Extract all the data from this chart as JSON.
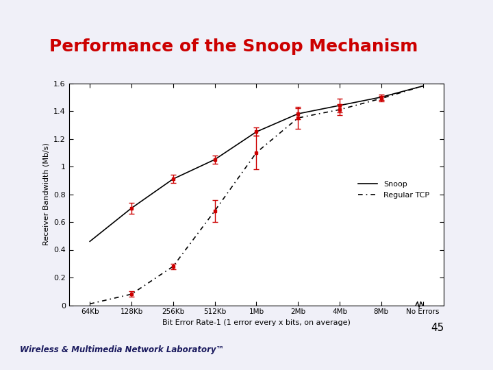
{
  "title": "Performance of the Snoop Mechanism",
  "title_color": "#cc0000",
  "title_fontsize": 18,
  "bg_color": "#f0f0f8",
  "header_bg": "#c8d8f0",
  "plot_bg": "#ffffff",
  "xlabel": "Bit Error Rate-1 (1 error every x bits, on average)",
  "ylabel": "Receiver Bandwidth (Mb/s)",
  "xtick_labels": [
    "64Kb",
    "128Kb",
    "256Kb",
    "512Kb",
    "1Mb",
    "2Mb",
    "4Mb",
    "8Mb",
    "No Errors"
  ],
  "ylim": [
    0,
    1.6
  ],
  "yticks": [
    0,
    0.2,
    0.4,
    0.6,
    0.8,
    1.0,
    1.2,
    1.4,
    1.6
  ],
  "ytick_labels": [
    "0",
    "0.2",
    "0.4",
    "0.6",
    "0.8",
    "1",
    "1.2",
    "1.4",
    "1.6"
  ],
  "snoop_x": [
    0,
    1,
    2,
    3,
    4,
    5,
    6,
    7,
    8
  ],
  "snoop_y": [
    0.46,
    0.7,
    0.91,
    1.05,
    1.25,
    1.38,
    1.44,
    1.5,
    1.58
  ],
  "regular_x": [
    0,
    1,
    2,
    3,
    4,
    5,
    6,
    7,
    8
  ],
  "regular_y": [
    0.01,
    0.08,
    0.28,
    0.68,
    1.1,
    1.35,
    1.41,
    1.49,
    1.58
  ],
  "error_points_x": [
    1,
    2,
    3,
    4,
    5,
    6,
    7
  ],
  "snoop_err_y": [
    0.7,
    0.91,
    1.05,
    1.25,
    1.38,
    1.44,
    1.5
  ],
  "snoop_err_lo": [
    0.04,
    0.03,
    0.03,
    0.03,
    0.04,
    0.05,
    0.02
  ],
  "snoop_err_hi": [
    0.04,
    0.03,
    0.03,
    0.03,
    0.04,
    0.05,
    0.02
  ],
  "regular_err_y": [
    0.08,
    0.28,
    0.68,
    1.1,
    1.35,
    1.41,
    1.49
  ],
  "regular_err_lo": [
    0.02,
    0.02,
    0.08,
    0.12,
    0.08,
    0.04,
    0.02
  ],
  "regular_err_hi": [
    0.02,
    0.02,
    0.08,
    0.12,
    0.08,
    0.04,
    0.02
  ],
  "snoop_color": "#000000",
  "regular_color": "#000000",
  "err_color": "#cc0000",
  "legend_snoop": "Snoop",
  "legend_regular": "Regular TCP",
  "footer_text": "Wireless & Multimedia Network Laboratory™",
  "footer_num": "45"
}
